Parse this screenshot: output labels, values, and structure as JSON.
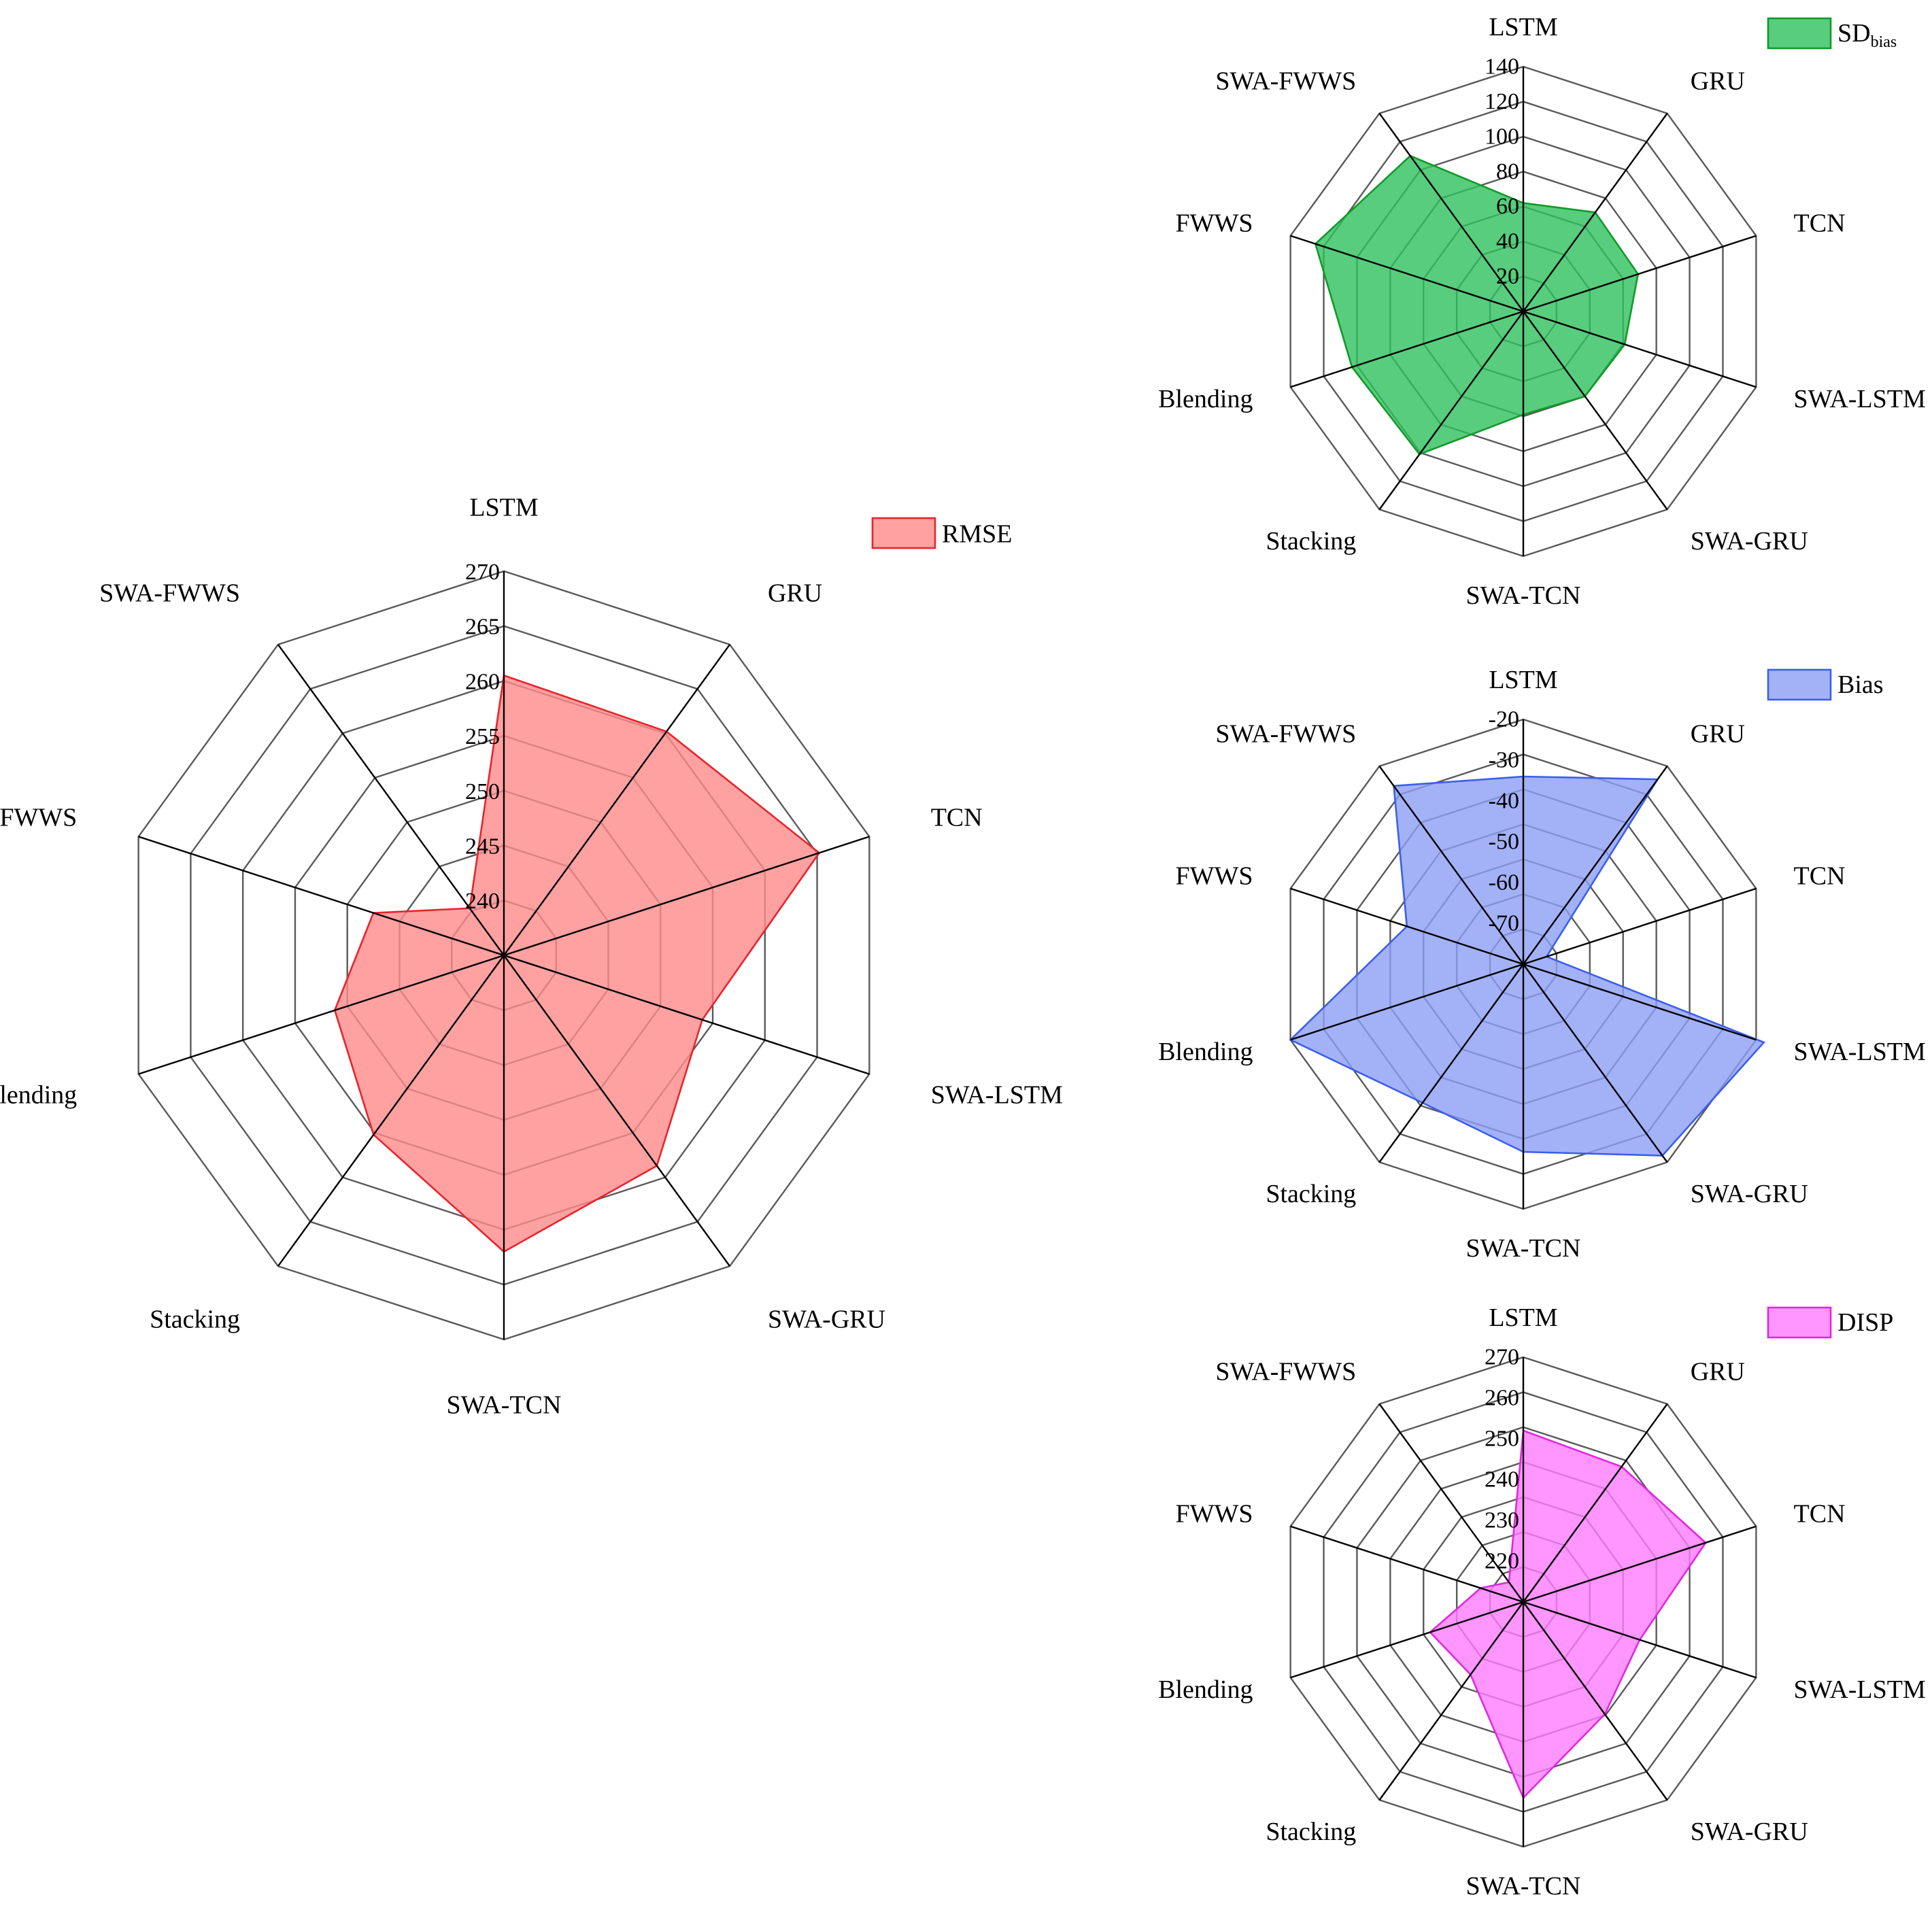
{
  "chart_data": [
    {
      "type": "radar",
      "categories": [
        "LSTM",
        "GRU",
        "TCN",
        "SWA-LSTM",
        "SWA-GRU",
        "SWA-TCN",
        "Stacking",
        "Blending",
        "FWWS",
        "SWA-FWWS"
      ],
      "series": [
        {
          "name": "RMSE",
          "values": [
            260.5,
            260.2,
            265.2,
            254.0,
            258.7,
            262.0,
            255.2,
            251.2,
            247.5,
            240.3
          ]
        }
      ],
      "rlim": [
        235,
        270
      ],
      "ticks": [
        "240",
        "245",
        "250",
        "255",
        "260",
        "265",
        "270"
      ],
      "tick_values": [
        240,
        245,
        250,
        255,
        260,
        265,
        270
      ],
      "legend_position": "top-right",
      "color": "#e8242c",
      "fill": "#ff8a8a"
    },
    {
      "type": "radar",
      "categories": [
        "LSTM",
        "GRU",
        "TCN",
        "SWA-LSTM",
        "SWA-GRU",
        "SWA-TCN",
        "Stacking",
        "Blending",
        "FWWS",
        "SWA-FWWS"
      ],
      "series": [
        {
          "name": "SD",
          "name_sub": "bias",
          "values": [
            62,
            70,
            69,
            61,
            60,
            59,
            101,
            103,
            125,
            110
          ]
        }
      ],
      "rlim": [
        0,
        140
      ],
      "ticks": [
        "20",
        "40",
        "60",
        "80",
        "100",
        "120",
        "140"
      ],
      "tick_values": [
        20,
        40,
        60,
        80,
        100,
        120,
        140
      ],
      "legend_position": "top-right",
      "color": "#119a2a",
      "fill": "#2ec05c"
    },
    {
      "type": "radar",
      "categories": [
        "LSTM",
        "GRU",
        "TCN",
        "SWA-LSTM",
        "SWA-GRU",
        "SWA-TCN",
        "Stacking",
        "Blending",
        "FWWS",
        "SWA-FWWS"
      ],
      "series": [
        {
          "name": "Bias",
          "values": [
            -34,
            -24,
            -74,
            -18,
            -22,
            -34,
            -38,
            -20,
            -50,
            -26
          ]
        }
      ],
      "rlim": [
        -80,
        -20
      ],
      "ticks": [
        "-70",
        "-60",
        "-50",
        "-40",
        "-30",
        "-20"
      ],
      "tick_values": [
        -70,
        -60,
        -50,
        -40,
        -30,
        -20
      ],
      "legend_position": "top-right",
      "color": "#3c5fe8",
      "fill": "#8c9ef5"
    },
    {
      "type": "radar",
      "categories": [
        "LSTM",
        "GRU",
        "TCN",
        "SWA-LSTM",
        "SWA-GRU",
        "SWA-TCN",
        "Stacking",
        "Blending",
        "FWWS",
        "SWA-FWWS"
      ],
      "series": [
        {
          "name": "DISP",
          "values": [
            252,
            251,
            257,
            240,
            244,
            258,
            232,
            234,
            221,
            216
          ]
        }
      ],
      "rlim": [
        210,
        270
      ],
      "ticks": [
        "220",
        "230",
        "240",
        "250",
        "260",
        "270"
      ],
      "tick_values": [
        220,
        230,
        240,
        250,
        260,
        270
      ],
      "legend_position": "top-right",
      "color": "#e028e0",
      "fill": "#ff7aff"
    }
  ]
}
